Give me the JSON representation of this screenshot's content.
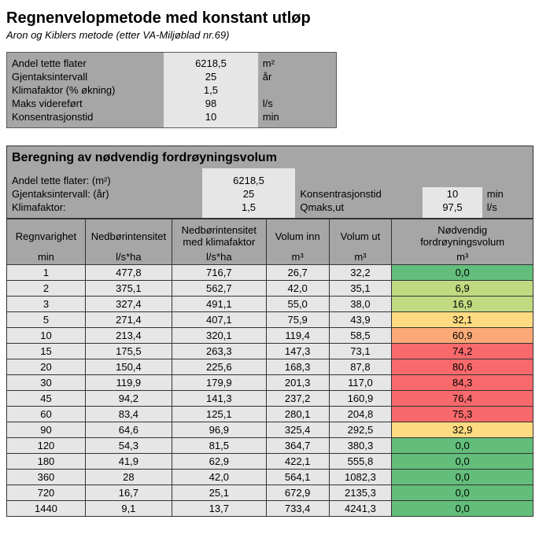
{
  "title": "Regnenvelopmetode med konstant utløp",
  "subtitle": "Aron og Kiblers metode (etter VA-Miljøblad nr.69)",
  "params": [
    {
      "label": "Andel tette flater",
      "value": "6218,5",
      "unit": "m²"
    },
    {
      "label": "Gjentaksintervall",
      "value": "25",
      "unit": "år"
    },
    {
      "label": "Klimafaktor (% økning)",
      "value": "1,5",
      "unit": ""
    },
    {
      "label": "Maks videreført",
      "value": "98",
      "unit": "l/s"
    },
    {
      "label": "Konsentrasjonstid",
      "value": "10",
      "unit": "min"
    }
  ],
  "section2_title": "Beregning av nødvendig fordrøyningsvolum",
  "summary_left": [
    {
      "label": "Andel tette flater: (m²)",
      "value": "6218,5"
    },
    {
      "label": "Gjentaksintervall: (år)",
      "value": "25"
    },
    {
      "label": "Klimafaktor:",
      "value": "1,5"
    }
  ],
  "summary_right": [
    {
      "label": "Konsentrasjonstid",
      "value": "10",
      "unit": "min"
    },
    {
      "label": "Qmaks,ut",
      "value": "97,5",
      "unit": "l/s"
    }
  ],
  "main_headers": {
    "c1a": "Regnvarighet",
    "c1b": "min",
    "c2a": "Nedbørintensitet",
    "c2b": "l/s*ha",
    "c3a": "Nedbørintensitet med klimafaktor",
    "c3b": "l/s*ha",
    "c4a": "Volum inn",
    "c4b": "m³",
    "c5a": "Volum ut",
    "c5b": "m³",
    "c6a": "Nødvendig fordrøyningsvolum",
    "c6b": "m³"
  },
  "colors": {
    "green": "#63be7b",
    "ygreen": "#c1da81",
    "yellow": "#fedb80",
    "orange": "#fbaa77",
    "red": "#f8696b"
  },
  "rows": [
    {
      "t": "1",
      "i": "477,8",
      "ik": "716,7",
      "vin": "26,7",
      "vut": "32,2",
      "v": "0,0",
      "c": "green"
    },
    {
      "t": "2",
      "i": "375,1",
      "ik": "562,7",
      "vin": "42,0",
      "vut": "35,1",
      "v": "6,9",
      "c": "ygreen"
    },
    {
      "t": "3",
      "i": "327,4",
      "ik": "491,1",
      "vin": "55,0",
      "vut": "38,0",
      "v": "16,9",
      "c": "ygreen"
    },
    {
      "t": "5",
      "i": "271,4",
      "ik": "407,1",
      "vin": "75,9",
      "vut": "43,9",
      "v": "32,1",
      "c": "yellow"
    },
    {
      "t": "10",
      "i": "213,4",
      "ik": "320,1",
      "vin": "119,4",
      "vut": "58,5",
      "v": "60,9",
      "c": "orange"
    },
    {
      "t": "15",
      "i": "175,5",
      "ik": "263,3",
      "vin": "147,3",
      "vut": "73,1",
      "v": "74,2",
      "c": "red"
    },
    {
      "t": "20",
      "i": "150,4",
      "ik": "225,6",
      "vin": "168,3",
      "vut": "87,8",
      "v": "80,6",
      "c": "red"
    },
    {
      "t": "30",
      "i": "119,9",
      "ik": "179,9",
      "vin": "201,3",
      "vut": "117,0",
      "v": "84,3",
      "c": "red"
    },
    {
      "t": "45",
      "i": "94,2",
      "ik": "141,3",
      "vin": "237,2",
      "vut": "160,9",
      "v": "76,4",
      "c": "red"
    },
    {
      "t": "60",
      "i": "83,4",
      "ik": "125,1",
      "vin": "280,1",
      "vut": "204,8",
      "v": "75,3",
      "c": "red"
    },
    {
      "t": "90",
      "i": "64,6",
      "ik": "96,9",
      "vin": "325,4",
      "vut": "292,5",
      "v": "32,9",
      "c": "yellow"
    },
    {
      "t": "120",
      "i": "54,3",
      "ik": "81,5",
      "vin": "364,7",
      "vut": "380,3",
      "v": "0,0",
      "c": "green"
    },
    {
      "t": "180",
      "i": "41,9",
      "ik": "62,9",
      "vin": "422,1",
      "vut": "555,8",
      "v": "0,0",
      "c": "green"
    },
    {
      "t": "360",
      "i": "28",
      "ik": "42,0",
      "vin": "564,1",
      "vut": "1082,3",
      "v": "0,0",
      "c": "green"
    },
    {
      "t": "720",
      "i": "16,7",
      "ik": "25,1",
      "vin": "672,9",
      "vut": "2135,3",
      "v": "0,0",
      "c": "green"
    },
    {
      "t": "1440",
      "i": "9,1",
      "ik": "13,7",
      "vin": "733,4",
      "vut": "4241,3",
      "v": "0,0",
      "c": "green"
    }
  ]
}
